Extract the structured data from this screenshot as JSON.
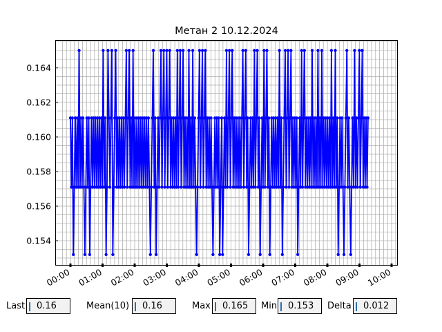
{
  "chart_data": {
    "type": "line",
    "title": "Метан 2 10.12.2024",
    "xlabel": "",
    "ylabel": "",
    "color": "#0000ff",
    "grid": true,
    "x_range": [
      "00:00",
      "10:00"
    ],
    "ylim": [
      0.1526,
      0.1656
    ],
    "y_levels": [
      0.1532,
      0.1571,
      0.1611,
      0.165
    ],
    "x_ticks": [
      "00:00",
      "01:00",
      "02:00",
      "03:00",
      "04:00",
      "05:00",
      "06:00",
      "07:00",
      "08:00",
      "09:00",
      "10:00"
    ],
    "y_ticks": [
      "0.154",
      "0.156",
      "0.158",
      "0.160",
      "0.162",
      "0.164"
    ],
    "data_start": "00:00",
    "data_end": "09:16",
    "series": [
      {
        "values": [
          0.1611,
          0.1571,
          0.1611,
          0.1532,
          0.1571,
          0.1611,
          0.1571,
          0.1611,
          0.1571,
          0.165,
          0.1571,
          0.1611,
          0.1571,
          0.1611,
          0.1571,
          0.1532,
          0.1571,
          0.1611,
          0.1571,
          0.1611,
          0.1532,
          0.1571,
          0.1611,
          0.1571,
          0.1611,
          0.1571,
          0.1611,
          0.1571,
          0.1611,
          0.1571,
          0.1611,
          0.1571,
          0.1611,
          0.1571,
          0.165,
          0.1571,
          0.1611,
          0.1532,
          0.1571,
          0.165,
          0.1611,
          0.1571,
          0.1611,
          0.165,
          0.1532,
          0.1571,
          0.1611,
          0.165,
          0.1571,
          0.1611,
          0.1571,
          0.1611,
          0.1571,
          0.1611,
          0.1571,
          0.1611,
          0.1571,
          0.1611,
          0.165,
          0.1571,
          0.1611,
          0.165,
          0.1571,
          0.1611,
          0.1571,
          0.165,
          0.1571,
          0.1611,
          0.1571,
          0.1611,
          0.1571,
          0.1611,
          0.1571,
          0.1611,
          0.1571,
          0.1611,
          0.1571,
          0.1611,
          0.1571,
          0.1611,
          0.1571,
          0.1611,
          0.1571,
          0.1532,
          0.1571,
          0.1611,
          0.165,
          0.1571,
          0.1611,
          0.1532,
          0.1571,
          0.1611,
          0.1571,
          0.1611,
          0.165,
          0.1571,
          0.1611,
          0.165,
          0.1571,
          0.1611,
          0.165,
          0.1571,
          0.1611,
          0.165,
          0.1571,
          0.1611,
          0.1571,
          0.1611,
          0.1571,
          0.1611,
          0.1571,
          0.165,
          0.1571,
          0.1611,
          0.165,
          0.1571,
          0.1611,
          0.165,
          0.1571,
          0.1611,
          0.1571,
          0.1611,
          0.1571,
          0.165,
          0.1571,
          0.1611,
          0.1571,
          0.165,
          0.1571,
          0.1611,
          0.1571,
          0.1532,
          0.1571,
          0.1611,
          0.165,
          0.1571,
          0.1611,
          0.165,
          0.1571,
          0.1611,
          0.165,
          0.1571,
          0.1611,
          0.1571,
          0.1611,
          0.1571,
          0.1611,
          0.1571,
          0.1532,
          0.1571,
          0.1611,
          0.1571,
          0.1611,
          0.1571,
          0.1611,
          0.1532,
          0.1571,
          0.1611,
          0.1532,
          0.1571,
          0.1611,
          0.1571,
          0.165,
          0.1571,
          0.1611,
          0.165,
          0.1571,
          0.1611,
          0.165,
          0.1571,
          0.1611,
          0.1571,
          0.1611,
          0.1571,
          0.1611,
          0.1571,
          0.1611,
          0.1571,
          0.1611,
          0.165,
          0.1571,
          0.1611,
          0.165,
          0.1571,
          0.1611,
          0.1532,
          0.1571,
          0.1611,
          0.1571,
          0.1611,
          0.1571,
          0.165,
          0.1571,
          0.1611,
          0.165,
          0.1571,
          0.1611,
          0.1532,
          0.1571,
          0.1611,
          0.1571,
          0.165,
          0.1571,
          0.1611,
          0.165,
          0.1571,
          0.1611,
          0.1532,
          0.1571,
          0.1611,
          0.1571,
          0.1611,
          0.1571,
          0.1611,
          0.1571,
          0.1611,
          0.1571,
          0.165,
          0.1571,
          0.1611,
          0.1532,
          0.1571,
          0.1611,
          0.165,
          0.1571,
          0.1611,
          0.165,
          0.1571,
          0.1611,
          0.165,
          0.1571,
          0.1611,
          0.1571,
          0.1611,
          0.1571,
          0.1611,
          0.1532,
          0.1571,
          0.1611,
          0.1571,
          0.165,
          0.1571,
          0.1611,
          0.165,
          0.1571,
          0.1611,
          0.1571,
          0.1611,
          0.1571,
          0.1611,
          0.1571,
          0.165,
          0.1571,
          0.1611,
          0.1571,
          0.1611,
          0.1571,
          0.165,
          0.1571,
          0.1611,
          0.1571,
          0.165,
          0.1571,
          0.1611,
          0.1571,
          0.1611,
          0.1571,
          0.1611,
          0.1571,
          0.1611,
          0.1571,
          0.165,
          0.1571,
          0.1611,
          0.1571,
          0.165,
          0.1571,
          0.1611,
          0.1532,
          0.1571,
          0.1611,
          0.1571,
          0.1611,
          0.1571,
          0.1532,
          0.1571,
          0.1611,
          0.165,
          0.1571,
          0.1611,
          0.1571,
          0.1532,
          0.1571,
          0.1611,
          0.1571,
          0.165,
          0.1571,
          0.1611,
          0.1571,
          0.1611,
          0.165,
          0.1571,
          0.1611,
          0.165,
          0.1571,
          0.1611,
          0.1571,
          0.1611,
          0.1571,
          0.1611
        ]
      }
    ]
  },
  "stats": {
    "last": {
      "label": "Last",
      "value": "0.16"
    },
    "mean": {
      "label": "Mean(10)",
      "value": "0.16"
    },
    "max": {
      "label": "Max",
      "value": "0.165"
    },
    "min": {
      "label": "Min",
      "value": "0.153"
    },
    "delta": {
      "label": "Delta",
      "value": "0.012"
    }
  }
}
